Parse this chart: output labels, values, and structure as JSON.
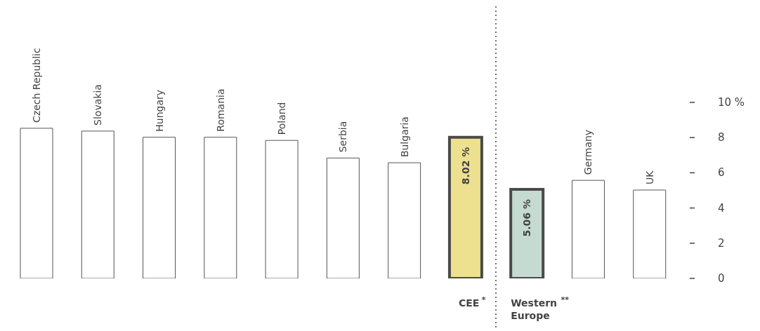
{
  "chart_data": {
    "type": "bar",
    "categories": [
      "Czech Republic",
      "Slovakia",
      "Hungary",
      "Romania",
      "Poland",
      "Serbia",
      "Bulgaria",
      "CEE $^{*}$",
      "Western Europe $^{**}$",
      "Germany",
      "UK"
    ],
    "values": [
      8.53,
      8.37,
      8.02,
      8.02,
      7.84,
      6.84,
      6.57,
      8.02,
      5.06,
      5.57,
      5.02
    ],
    "colors": [
      "#ffffff",
      "#ffffff",
      "#ffffff",
      "#ffffff",
      "#ffffff",
      "#ffffff",
      "#ffffff",
      "#ede18f",
      "#c5dbd1",
      "#ffffff",
      "#ffffff"
    ],
    "value_labels": [
      null,
      null,
      null,
      null,
      null,
      null,
      null,
      "8.02 %",
      "5.06 %",
      null,
      null
    ],
    "ylim": [
      0,
      10
    ],
    "yticks": [
      0,
      2,
      4,
      6,
      8,
      {
        "value": 10,
        "label": "10 %"
      }
    ],
    "grid": false,
    "legend": false
  }
}
